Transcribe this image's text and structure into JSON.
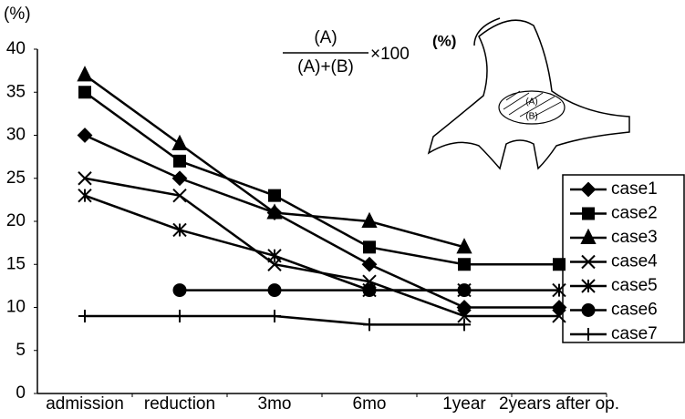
{
  "chart_data": {
    "type": "line",
    "y_label": "(%)",
    "formula": {
      "numerator": "(A)",
      "denominator": "(A)+(B)",
      "multiplier": "×100",
      "unit": "(%)"
    },
    "diagram_labels": [
      "(A)",
      "(B)"
    ],
    "categories": [
      "admission",
      "reduction",
      "3mo",
      "6mo",
      "1year",
      "2years after op."
    ],
    "ylim": [
      0,
      40
    ],
    "yticks": [
      0,
      5,
      10,
      15,
      20,
      25,
      30,
      35,
      40
    ],
    "series": [
      {
        "name": "case1",
        "color": "#000000",
        "marker": "diamond",
        "values": [
          30,
          25,
          21,
          15,
          10,
          10
        ]
      },
      {
        "name": "case2",
        "color": "#000000",
        "marker": "square",
        "values": [
          35,
          27,
          23,
          17,
          15,
          15
        ]
      },
      {
        "name": "case3",
        "color": "#000000",
        "marker": "triangle",
        "values": [
          37,
          29,
          21,
          20,
          17,
          null
        ]
      },
      {
        "name": "case4",
        "color": "#000000",
        "marker": "x",
        "values": [
          25,
          23,
          15,
          13,
          9,
          9
        ]
      },
      {
        "name": "case5",
        "color": "#000000",
        "marker": "asterisk",
        "values": [
          23,
          19,
          16,
          12,
          12,
          12
        ]
      },
      {
        "name": "case6",
        "color": "#000000",
        "marker": "circle",
        "values": [
          null,
          12,
          12,
          12,
          12,
          null
        ]
      },
      {
        "name": "case7",
        "color": "#000000",
        "marker": "plus",
        "values": [
          9,
          9,
          9,
          8,
          8,
          null
        ]
      }
    ]
  }
}
